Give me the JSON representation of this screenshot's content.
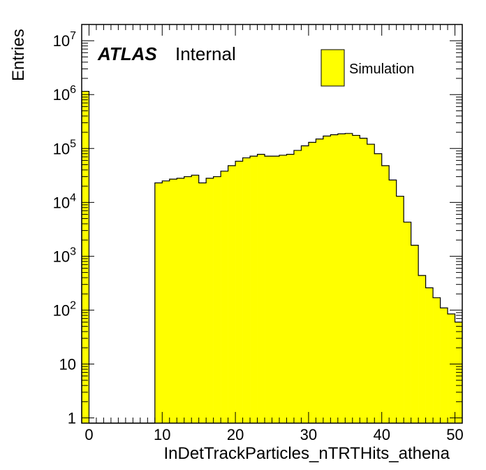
{
  "chart_data": {
    "type": "bar",
    "xlabel": "InDetTrackParticles_nTRTHits_athena",
    "ylabel": "Entries",
    "xlim": [
      -1,
      51
    ],
    "ylim": [
      0.8,
      20000000
    ],
    "y_scale": "log",
    "x_ticks": [
      "0",
      "10",
      "20",
      "30",
      "40",
      "50"
    ],
    "y_ticks": [
      {
        "base": "1",
        "exp": ""
      },
      {
        "base": "10",
        "exp": ""
      },
      {
        "base": "10",
        "exp": "2"
      },
      {
        "base": "10",
        "exp": "3"
      },
      {
        "base": "10",
        "exp": "4"
      },
      {
        "base": "10",
        "exp": "5"
      },
      {
        "base": "10",
        "exp": "6"
      },
      {
        "base": "10",
        "exp": "7"
      }
    ],
    "label_main": "ATLAS",
    "label_sub": "Internal",
    "legend": {
      "position": "top-right",
      "entries": [
        "Simulation"
      ]
    },
    "fill_color": "#ffff00",
    "line_color": "#000000",
    "series": [
      {
        "name": "Simulation",
        "bin_width": 1,
        "bin_low_edges": [
          -1,
          0,
          1,
          2,
          3,
          4,
          5,
          6,
          7,
          8,
          9,
          10,
          11,
          12,
          13,
          14,
          15,
          16,
          17,
          18,
          19,
          20,
          21,
          22,
          23,
          24,
          25,
          26,
          27,
          28,
          29,
          30,
          31,
          32,
          33,
          34,
          35,
          36,
          37,
          38,
          39,
          40,
          41,
          42,
          43,
          44,
          45,
          46,
          47,
          48,
          49,
          50
        ],
        "values": [
          1150000,
          0,
          0,
          0,
          0,
          0,
          0,
          0,
          0,
          0,
          23000,
          25000,
          27000,
          28000,
          30000,
          32000,
          23000,
          28000,
          30000,
          38000,
          48000,
          58000,
          67000,
          72000,
          78000,
          72000,
          72000,
          75000,
          78000,
          92000,
          112000,
          130000,
          150000,
          170000,
          180000,
          187000,
          190000,
          175000,
          155000,
          120000,
          80000,
          48000,
          26000,
          13000,
          4300,
          1600,
          440,
          260,
          170,
          110,
          85,
          60
        ]
      }
    ]
  }
}
